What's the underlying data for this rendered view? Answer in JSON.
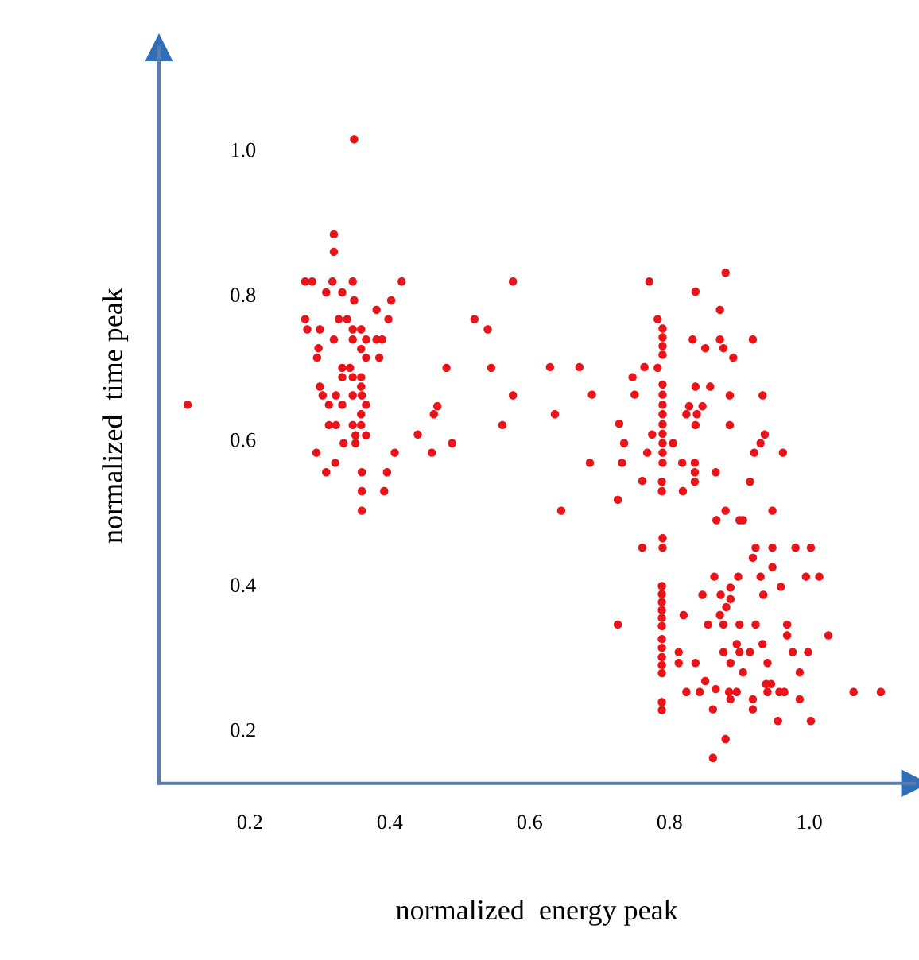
{
  "chart_data": {
    "type": "scatter",
    "xlabel": "normalized  energy peak",
    "ylabel": "normalized  time peak",
    "xlim": [
      0.07,
      1.15
    ],
    "ylim": [
      0.126,
      1.14
    ],
    "xticks": [
      {
        "value": 0.2,
        "label": "0.2"
      },
      {
        "value": 0.4,
        "label": "0.4"
      },
      {
        "value": 0.6,
        "label": "0.6"
      },
      {
        "value": 0.8,
        "label": "0.8"
      },
      {
        "value": 1.0,
        "label": "1.0"
      }
    ],
    "yticks": [
      {
        "value": 0.2,
        "label": "0.2"
      },
      {
        "value": 0.4,
        "label": "0.4"
      },
      {
        "value": 0.6,
        "label": "0.6"
      },
      {
        "value": 0.8,
        "label": "0.8"
      },
      {
        "value": 1.0,
        "label": "1.0"
      }
    ],
    "grid": false,
    "legend": false,
    "marker": "circle",
    "series": [
      {
        "color": "#e8141a",
        "x": [
          0.349,
          0.32,
          0.32,
          0.279,
          0.289,
          0.318,
          0.347,
          0.417,
          0.576,
          0.309,
          0.332,
          0.349,
          0.402,
          0.381,
          0.279,
          0.327,
          0.339,
          0.398,
          0.521,
          0.54,
          0.282,
          0.3,
          0.347,
          0.359,
          0.32,
          0.347,
          0.366,
          0.381,
          0.389,
          0.298,
          0.359,
          0.296,
          0.366,
          0.385,
          0.481,
          0.545,
          0.332,
          0.343,
          0.332,
          0.347,
          0.359,
          0.3,
          0.359,
          0.304,
          0.323,
          0.347,
          0.36,
          0.576,
          0.313,
          0.332,
          0.366,
          0.111,
          0.468,
          0.463,
          0.359,
          0.313,
          0.323,
          0.347,
          0.359,
          0.561,
          0.351,
          0.366,
          0.44,
          0.334,
          0.351,
          0.489,
          0.295,
          0.407,
          0.46,
          0.322,
          0.309,
          0.36,
          0.396,
          0.36,
          0.392,
          0.36,
          0.771,
          0.783,
          0.629,
          0.671,
          0.764,
          0.747,
          0.689,
          0.75,
          0.636,
          0.728,
          0.735,
          0.686,
          0.732,
          0.768,
          0.761,
          0.726,
          0.645,
          0.761,
          0.88,
          0.837,
          0.872,
          0.79,
          0.79,
          0.79,
          0.79,
          0.833,
          0.851,
          0.872,
          0.877,
          0.891,
          0.919,
          0.783,
          0.79,
          0.79,
          0.79,
          0.79,
          0.79,
          0.79,
          0.79,
          0.79,
          0.79,
          0.837,
          0.858,
          0.886,
          0.933,
          0.828,
          0.847,
          0.824,
          0.839,
          0.837,
          0.886,
          0.775,
          0.805,
          0.936,
          0.93,
          0.921,
          0.962,
          0.818,
          0.836,
          0.836,
          0.866,
          0.836,
          0.789,
          0.789,
          0.819,
          0.915,
          0.88,
          0.947,
          0.867,
          0.9,
          0.905,
          0.79,
          0.79,
          0.923,
          0.947,
          0.98,
          1.002,
          0.919,
          0.947,
          0.864,
          0.898,
          0.93,
          0.995,
          1.014,
          0.959,
          0.789,
          0.789,
          0.789,
          0.789,
          0.789,
          0.789,
          0.789,
          0.789,
          0.789,
          0.789,
          0.789,
          0.789,
          0.789,
          0.847,
          0.873,
          0.887,
          0.887,
          0.934,
          0.82,
          0.872,
          0.881,
          0.855,
          0.877,
          0.9,
          0.923,
          0.968,
          0.968,
          1.027,
          0.726,
          0.933,
          0.896,
          0.813,
          0.837,
          0.813,
          0.877,
          0.9,
          0.915,
          0.976,
          0.998,
          0.887,
          0.94,
          0.905,
          0.986,
          0.851,
          0.866,
          0.824,
          0.843,
          0.885,
          0.896,
          0.938,
          0.945,
          0.957,
          0.94,
          0.964,
          0.887,
          0.919,
          0.986,
          1.063,
          1.102,
          0.919,
          0.862,
          0.955,
          1.002,
          0.88,
          0.862
        ],
        "values": [
          1.014,
          0.883,
          0.859,
          0.818,
          0.818,
          0.818,
          0.818,
          0.818,
          0.818,
          0.803,
          0.803,
          0.792,
          0.792,
          0.779,
          0.766,
          0.766,
          0.766,
          0.766,
          0.766,
          0.752,
          0.752,
          0.752,
          0.752,
          0.752,
          0.738,
          0.738,
          0.738,
          0.738,
          0.738,
          0.726,
          0.725,
          0.713,
          0.713,
          0.713,
          0.699,
          0.699,
          0.699,
          0.699,
          0.686,
          0.686,
          0.686,
          0.673,
          0.673,
          0.661,
          0.661,
          0.661,
          0.661,
          0.661,
          0.648,
          0.648,
          0.648,
          0.648,
          0.646,
          0.635,
          0.635,
          0.62,
          0.62,
          0.62,
          0.62,
          0.62,
          0.606,
          0.606,
          0.607,
          0.595,
          0.595,
          0.595,
          0.582,
          0.582,
          0.582,
          0.568,
          0.555,
          0.555,
          0.555,
          0.529,
          0.529,
          0.502,
          0.818,
          0.766,
          0.7,
          0.7,
          0.7,
          0.686,
          0.662,
          0.662,
          0.635,
          0.622,
          0.595,
          0.568,
          0.568,
          0.582,
          0.543,
          0.517,
          0.502,
          0.451,
          0.83,
          0.804,
          0.779,
          0.753,
          0.741,
          0.729,
          0.717,
          0.738,
          0.726,
          0.738,
          0.726,
          0.713,
          0.738,
          0.699,
          0.676,
          0.662,
          0.648,
          0.635,
          0.621,
          0.608,
          0.595,
          0.582,
          0.568,
          0.673,
          0.673,
          0.661,
          0.661,
          0.646,
          0.646,
          0.635,
          0.635,
          0.62,
          0.62,
          0.607,
          0.595,
          0.607,
          0.595,
          0.582,
          0.582,
          0.568,
          0.568,
          0.555,
          0.555,
          0.542,
          0.542,
          0.529,
          0.529,
          0.542,
          0.502,
          0.502,
          0.489,
          0.489,
          0.489,
          0.464,
          0.451,
          0.451,
          0.451,
          0.451,
          0.451,
          0.437,
          0.424,
          0.411,
          0.411,
          0.411,
          0.411,
          0.411,
          0.397,
          0.398,
          0.387,
          0.376,
          0.365,
          0.354,
          0.343,
          0.325,
          0.313,
          0.3,
          0.289,
          0.278,
          0.238,
          0.227,
          0.386,
          0.386,
          0.396,
          0.38,
          0.386,
          0.358,
          0.358,
          0.369,
          0.345,
          0.345,
          0.345,
          0.345,
          0.345,
          0.33,
          0.33,
          0.345,
          0.318,
          0.318,
          0.307,
          0.292,
          0.292,
          0.307,
          0.307,
          0.307,
          0.307,
          0.307,
          0.292,
          0.292,
          0.279,
          0.279,
          0.267,
          0.256,
          0.252,
          0.252,
          0.252,
          0.252,
          0.263,
          0.263,
          0.252,
          0.252,
          0.252,
          0.242,
          0.242,
          0.242,
          0.252,
          0.252,
          0.228,
          0.228,
          0.212,
          0.212,
          0.187,
          0.161
        ]
      }
    ]
  }
}
